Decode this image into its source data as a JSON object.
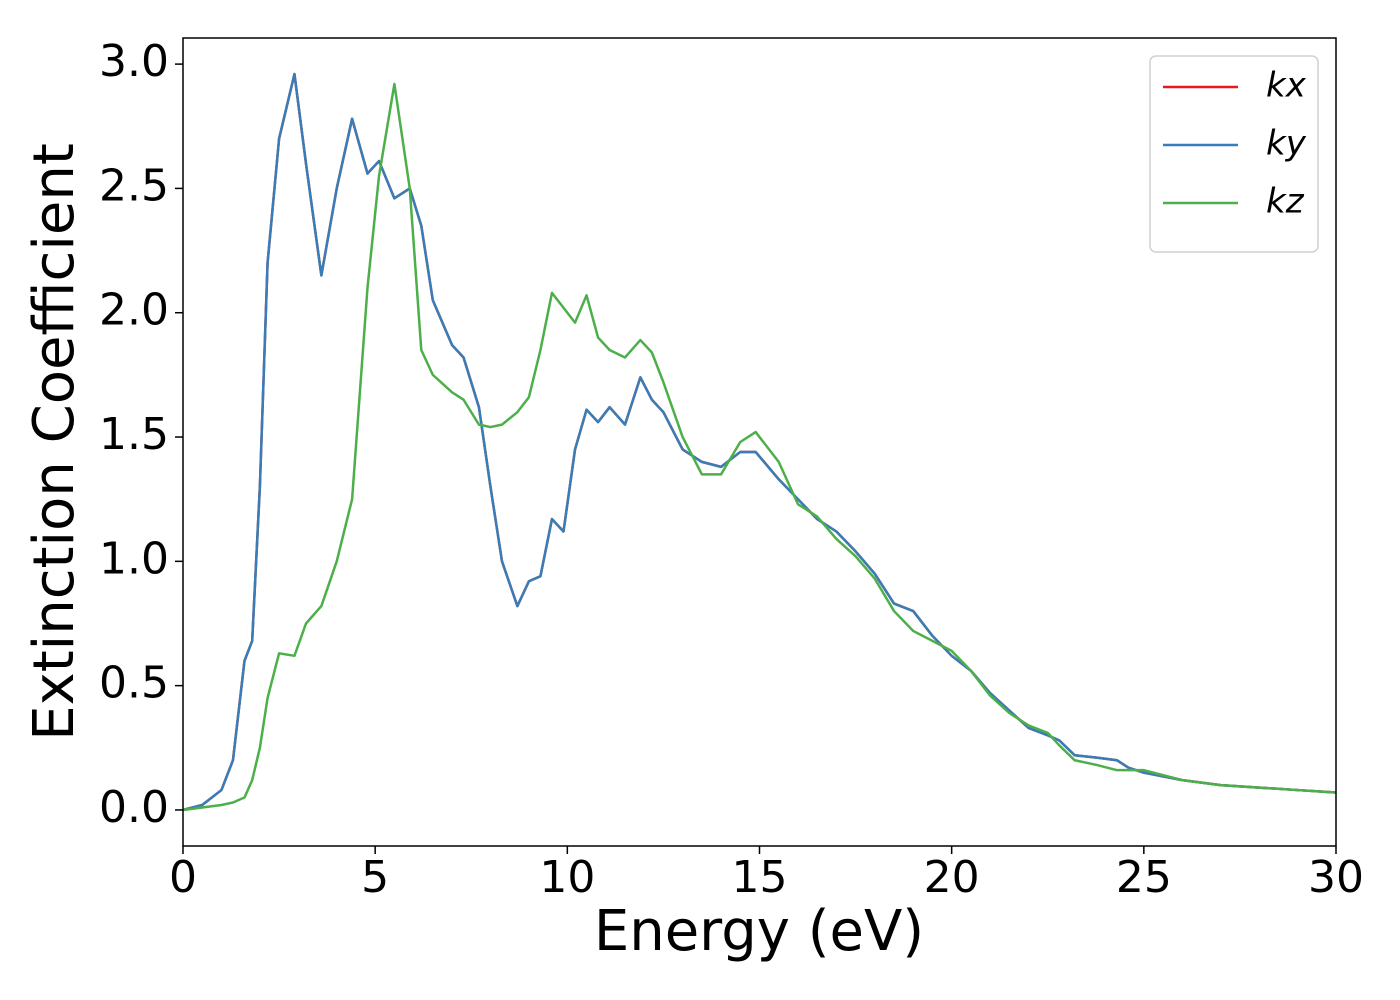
{
  "chart_data": {
    "type": "line",
    "xlabel": "Energy (eV)",
    "ylabel": "Extinction Coefficient",
    "xlim": [
      0,
      30
    ],
    "ylim": [
      -0.145,
      3.105
    ],
    "xticks": [
      0,
      5,
      10,
      15,
      20,
      25,
      30
    ],
    "yticks": [
      {
        "value": 0,
        "label": "0.0"
      },
      {
        "value": 0.5,
        "label": "0.5"
      },
      {
        "value": 1,
        "label": "1.0"
      },
      {
        "value": 1.5,
        "label": "1.5"
      },
      {
        "value": 2,
        "label": "2.0"
      },
      {
        "value": 2.5,
        "label": "2.5"
      },
      {
        "value": 3,
        "label": "3.0"
      }
    ],
    "grid": false,
    "legend": "upper right",
    "x": [
      0,
      0.5,
      1,
      1.3,
      1.6,
      1.8,
      2.0,
      2.2,
      2.5,
      2.9,
      3.2,
      3.6,
      4.0,
      4.4,
      4.8,
      5.1,
      5.5,
      5.9,
      6.2,
      6.5,
      7.0,
      7.3,
      7.7,
      8.0,
      8.3,
      8.7,
      9.0,
      9.3,
      9.6,
      9.9,
      10.2,
      10.5,
      10.8,
      11.1,
      11.5,
      11.9,
      12.2,
      12.5,
      13.0,
      13.5,
      14.0,
      14.5,
      14.9,
      15.5,
      16.0,
      16.5,
      17.0,
      17.5,
      18.0,
      18.5,
      19.0,
      19.5,
      20.0,
      20.5,
      21.0,
      21.5,
      22.0,
      22.5,
      22.8,
      23.2,
      23.8,
      24.3,
      24.6,
      25.0,
      26,
      27,
      28,
      29,
      30
    ],
    "series": [
      {
        "name": "kx",
        "color": "#e41a1c",
        "values": [
          0,
          0.02,
          0.08,
          0.2,
          0.6,
          0.68,
          1.3,
          2.2,
          2.7,
          2.96,
          2.6,
          2.15,
          2.5,
          2.78,
          2.56,
          2.61,
          2.46,
          2.5,
          2.35,
          2.05,
          1.87,
          1.82,
          1.62,
          1.3,
          1.0,
          0.82,
          0.92,
          0.94,
          1.17,
          1.12,
          1.45,
          1.61,
          1.56,
          1.62,
          1.55,
          1.74,
          1.65,
          1.6,
          1.45,
          1.4,
          1.38,
          1.44,
          1.44,
          1.33,
          1.25,
          1.17,
          1.12,
          1.04,
          0.95,
          0.83,
          0.8,
          0.7,
          0.62,
          0.56,
          0.47,
          0.4,
          0.33,
          0.3,
          0.28,
          0.22,
          0.21,
          0.2,
          0.17,
          0.15,
          0.12,
          0.1,
          0.09,
          0.08,
          0.07
        ]
      },
      {
        "name": "ky",
        "color": "#377eb8",
        "values": [
          0,
          0.02,
          0.08,
          0.2,
          0.6,
          0.68,
          1.3,
          2.2,
          2.7,
          2.96,
          2.6,
          2.15,
          2.5,
          2.78,
          2.56,
          2.61,
          2.46,
          2.5,
          2.35,
          2.05,
          1.87,
          1.82,
          1.62,
          1.3,
          1.0,
          0.82,
          0.92,
          0.94,
          1.17,
          1.12,
          1.45,
          1.61,
          1.56,
          1.62,
          1.55,
          1.74,
          1.65,
          1.6,
          1.45,
          1.4,
          1.38,
          1.44,
          1.44,
          1.33,
          1.25,
          1.17,
          1.12,
          1.04,
          0.95,
          0.83,
          0.8,
          0.7,
          0.62,
          0.56,
          0.47,
          0.4,
          0.33,
          0.3,
          0.28,
          0.22,
          0.21,
          0.2,
          0.17,
          0.15,
          0.12,
          0.1,
          0.09,
          0.08,
          0.07
        ]
      },
      {
        "name": "kz",
        "color": "#4daf4a",
        "values": [
          0,
          0.01,
          0.02,
          0.03,
          0.05,
          0.12,
          0.25,
          0.45,
          0.63,
          0.62,
          0.75,
          0.82,
          1.0,
          1.25,
          2.1,
          2.55,
          2.92,
          2.5,
          1.85,
          1.75,
          1.68,
          1.65,
          1.55,
          1.54,
          1.55,
          1.6,
          1.66,
          1.85,
          2.08,
          2.02,
          1.96,
          2.07,
          1.9,
          1.85,
          1.82,
          1.89,
          1.84,
          1.72,
          1.5,
          1.35,
          1.35,
          1.48,
          1.52,
          1.4,
          1.23,
          1.18,
          1.09,
          1.02,
          0.93,
          0.8,
          0.72,
          0.68,
          0.64,
          0.56,
          0.46,
          0.39,
          0.34,
          0.31,
          0.26,
          0.2,
          0.18,
          0.16,
          0.16,
          0.16,
          0.12,
          0.1,
          0.09,
          0.08,
          0.07
        ]
      }
    ]
  }
}
